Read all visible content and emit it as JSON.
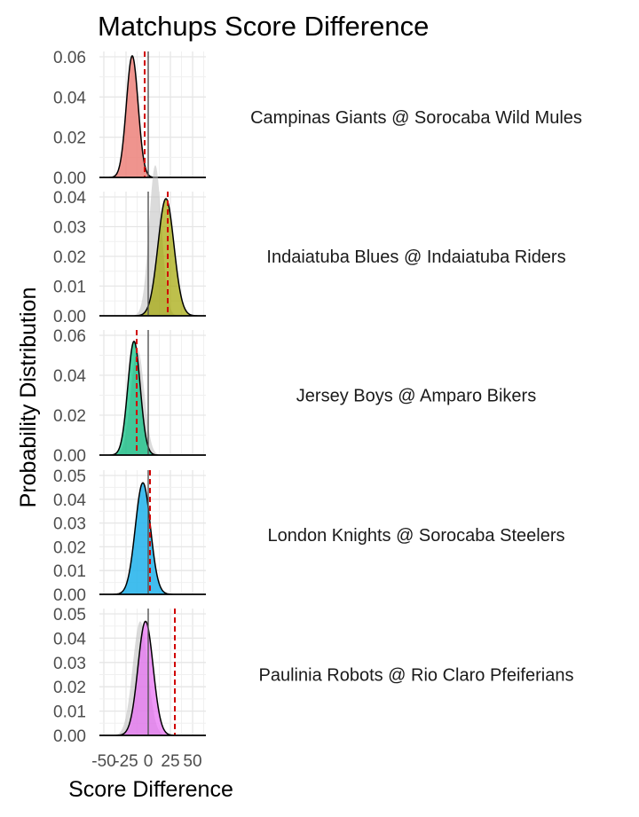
{
  "chart_data": {
    "type": "area",
    "title": "Matchups Score Difference",
    "xlabel": "Score Difference",
    "ylabel": "Probability Distribution",
    "xlim": [
      -55,
      65
    ],
    "x_ticks": [
      -50,
      -25,
      0,
      25,
      50
    ],
    "x_tick_labels": [
      "-50",
      "-25",
      "0",
      "25",
      "50"
    ],
    "grid": true,
    "panels": [
      {
        "label": "Campinas Giants @ Sorocaba Wild Mules",
        "color": "#F8766D",
        "mean": -18,
        "sd": 6.6,
        "ghost_mean": -18,
        "ghost_sd": 6.6,
        "red_line": -4,
        "ylim": [
          0,
          0.06
        ],
        "y_ticks": [
          "0.00",
          "0.02",
          "0.04",
          "0.06"
        ]
      },
      {
        "label": "Indaiatuba Blues @ Indaiatuba Riders",
        "color": "#A3A500",
        "mean": 20,
        "sd": 9,
        "ghost_mean": 8,
        "ghost_sd": 7,
        "red_line": 22,
        "ylim": [
          0,
          0.045
        ],
        "y_ticks": [
          "0.00",
          "0.01",
          "0.02",
          "0.03",
          "0.04"
        ]
      },
      {
        "label": "Jersey Boys @ Amparo Bikers",
        "color": "#00BF7D",
        "mean": -16,
        "sd": 7,
        "ghost_mean": -12,
        "ghost_sd": 7.5,
        "red_line": -13,
        "ylim": [
          0,
          0.06
        ],
        "y_ticks": [
          "0.00",
          "0.02",
          "0.04",
          "0.06"
        ]
      },
      {
        "label": "London Knights @ Sorocaba Steelers",
        "color": "#00B0F6",
        "mean": -6,
        "sd": 8.5,
        "ghost_mean": -6,
        "ghost_sd": 8.5,
        "red_line": 2,
        "ylim": [
          0,
          0.05
        ],
        "y_ticks": [
          "0.00",
          "0.01",
          "0.02",
          "0.03",
          "0.04",
          "0.05"
        ]
      },
      {
        "label": "Paulinia Robots @ Rio Claro Pfeiferians",
        "color": "#E76BF3",
        "mean": -3,
        "sd": 8.5,
        "ghost_mean": -9,
        "ghost_sd": 8.5,
        "red_line": 30,
        "ylim": [
          0,
          0.05
        ],
        "y_ticks": [
          "0.00",
          "0.01",
          "0.02",
          "0.03",
          "0.04",
          "0.05"
        ]
      }
    ]
  }
}
